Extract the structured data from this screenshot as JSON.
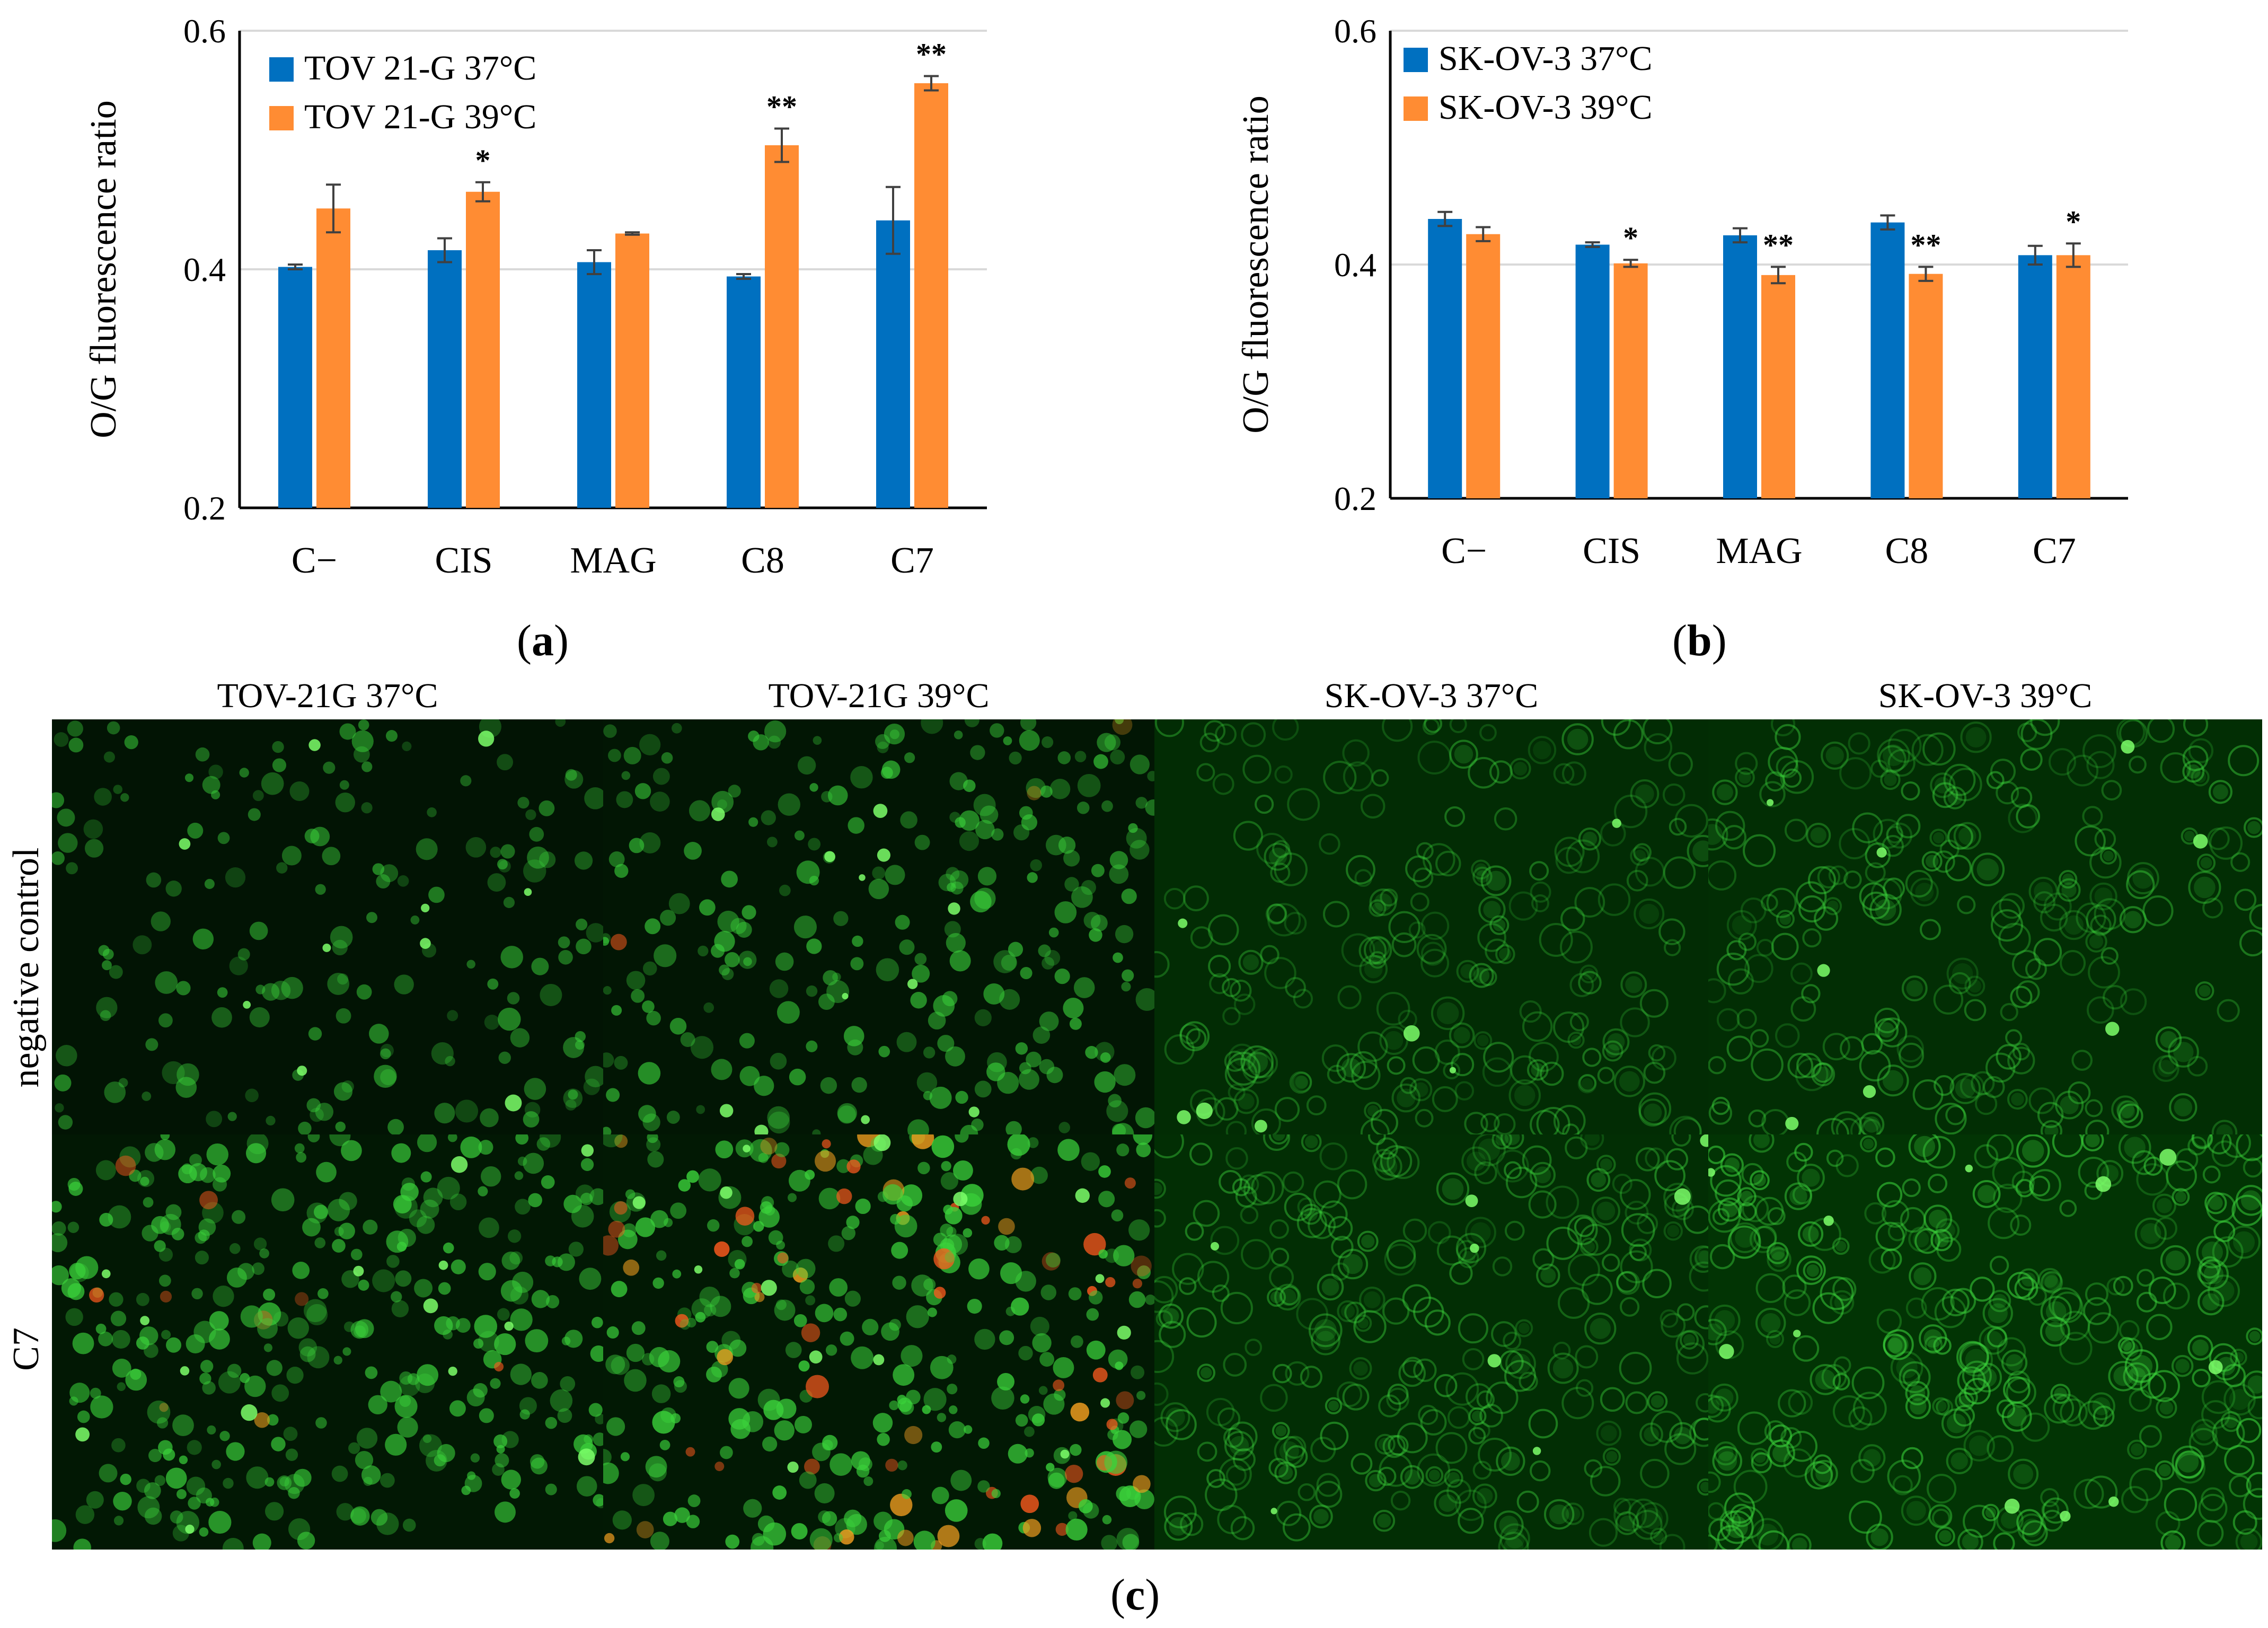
{
  "colors": {
    "series_37": "#0070C0",
    "series_39": "#FF8C33",
    "gridline": "#D9D9D9",
    "axis": "#000000",
    "error_bar": "#404040",
    "cell_green": "#3bd23b",
    "cell_red": "#ff5a1e",
    "cell_orange": "#f7a020"
  },
  "chart_data": [
    {
      "panel": "a",
      "type": "bar",
      "ylabel": "O/G fluorescence ratio",
      "xlabel": "",
      "ylim": [
        0.2,
        0.6
      ],
      "yticks": [
        "0.2",
        "0.4",
        "0.6"
      ],
      "grid": true,
      "legend_position": "top-left",
      "categories": [
        "C−",
        "CIS",
        "MAG",
        "C8",
        "C7"
      ],
      "series": [
        {
          "name": "TOV 21-G 37°C",
          "color": "#0070C0",
          "values": [
            0.402,
            0.416,
            0.406,
            0.394,
            0.441
          ],
          "errors": [
            0.002,
            0.01,
            0.01,
            0.002,
            0.028
          ],
          "significance": [
            "",
            "",
            "",
            "",
            ""
          ]
        },
        {
          "name": "TOV 21-G 39°C",
          "color": "#FF8C33",
          "values": [
            0.451,
            0.465,
            0.43,
            0.504,
            0.556
          ],
          "errors": [
            0.02,
            0.008,
            0.001,
            0.014,
            0.006
          ],
          "significance": [
            "",
            "*",
            "",
            "**",
            "**"
          ]
        }
      ]
    },
    {
      "panel": "b",
      "type": "bar",
      "ylabel": "O/G fluorescence ratio",
      "xlabel": "",
      "ylim": [
        0.2,
        0.6
      ],
      "yticks": [
        "0.2",
        "0.4",
        "0.6"
      ],
      "grid": true,
      "legend_position": "top-left",
      "categories": [
        "C−",
        "CIS",
        "MAG",
        "C8",
        "C7"
      ],
      "series": [
        {
          "name": "SK-OV-3 37°C",
          "color": "#0070C0",
          "values": [
            0.439,
            0.417,
            0.425,
            0.436,
            0.408
          ],
          "errors": [
            0.006,
            0.002,
            0.006,
            0.006,
            0.008
          ],
          "significance": [
            "",
            "",
            "",
            "",
            ""
          ]
        },
        {
          "name": "SK-OV-3 39°C",
          "color": "#FF8C33",
          "values": [
            0.426,
            0.401,
            0.391,
            0.392,
            0.408
          ],
          "errors": [
            0.006,
            0.003,
            0.007,
            0.006,
            0.01
          ],
          "significance": [
            "",
            "*",
            "**",
            "**",
            "*"
          ]
        }
      ]
    }
  ],
  "panels": {
    "a": {
      "label": "a"
    },
    "b": {
      "label": "b"
    },
    "c": {
      "label": "c",
      "column_titles": [
        "TOV-21G 37°C",
        "TOV-21G 39°C",
        "SK-OV-3 37°C",
        "SK-OV-3 39°C"
      ],
      "row_labels": [
        "negative control",
        "C7"
      ],
      "images": [
        {
          "id": "tov-37-neg",
          "density": 0.28,
          "brightness": 0.55,
          "red_fraction": 0.0,
          "diffuse": false
        },
        {
          "id": "tov-39-neg",
          "density": 0.42,
          "brightness": 0.65,
          "red_fraction": 0.02,
          "diffuse": false
        },
        {
          "id": "sk-37-neg",
          "density": 0.35,
          "brightness": 0.4,
          "red_fraction": 0.0,
          "diffuse": true
        },
        {
          "id": "sk-39-neg",
          "density": 0.38,
          "brightness": 0.45,
          "red_fraction": 0.0,
          "diffuse": true
        },
        {
          "id": "tov-37-c7",
          "density": 0.55,
          "brightness": 0.75,
          "red_fraction": 0.03,
          "diffuse": false
        },
        {
          "id": "tov-39-c7",
          "density": 0.6,
          "brightness": 0.85,
          "red_fraction": 0.18,
          "diffuse": false
        },
        {
          "id": "sk-37-c7",
          "density": 0.45,
          "brightness": 0.45,
          "red_fraction": 0.0,
          "diffuse": true
        },
        {
          "id": "sk-39-c7",
          "density": 0.5,
          "brightness": 0.6,
          "red_fraction": 0.0,
          "diffuse": true
        }
      ]
    }
  }
}
